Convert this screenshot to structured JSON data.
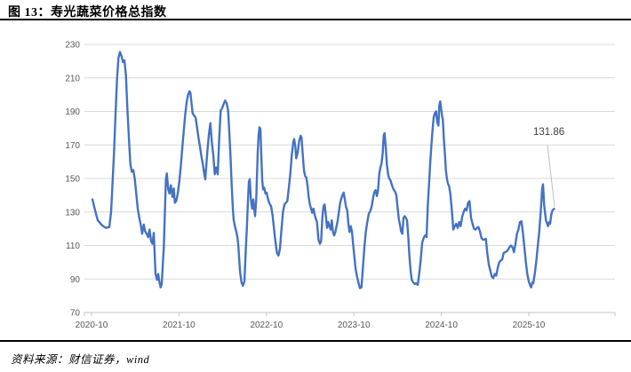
{
  "header": {
    "title": "图 13：寿光蔬菜价格总指数"
  },
  "footer": {
    "source": "资料来源：财信证券，wind"
  },
  "chart_data": {
    "type": "line",
    "title": "寿光蔬菜价格总指数",
    "series_name": "寿光蔬菜价格总指数",
    "xlabel": "",
    "ylabel": "",
    "x_unit": "months since 2020-10",
    "x_tick_labels": [
      "2020-10",
      "2021-10",
      "2022-10",
      "2023-10",
      "2024-10",
      "2025-10"
    ],
    "x_tick_months": [
      0,
      12,
      24,
      36,
      48,
      60
    ],
    "ylim": [
      70,
      230
    ],
    "y_ticks": [
      70,
      90,
      110,
      130,
      150,
      170,
      190,
      210,
      230
    ],
    "grid": true,
    "legend": "none",
    "last_value_label": "131.86",
    "last_point": {
      "m": 63.48,
      "v": 131.86
    },
    "colors": {
      "line": "#4472C4",
      "grid": "#D9D9D9",
      "axis": "#C6C6C6",
      "tick_label": "#595959",
      "annotation_text": "#404040",
      "leader": "#BFBFBF"
    },
    "points": [
      [
        0.12,
        137.5
      ],
      [
        0.49,
        131
      ],
      [
        0.85,
        125
      ],
      [
        1.46,
        122
      ],
      [
        1.95,
        120.5
      ],
      [
        2.44,
        121
      ],
      [
        2.68,
        130
      ],
      [
        2.89,
        148
      ],
      [
        3.09,
        165.5
      ],
      [
        3.29,
        188.5
      ],
      [
        3.5,
        209.5
      ],
      [
        3.7,
        222
      ],
      [
        3.9,
        225.5
      ],
      [
        4.11,
        223
      ],
      [
        4.3,
        219.5
      ],
      [
        4.51,
        220.5
      ],
      [
        4.72,
        211.5
      ],
      [
        4.91,
        192
      ],
      [
        5.12,
        174.5
      ],
      [
        5.33,
        158.5
      ],
      [
        5.52,
        154
      ],
      [
        5.73,
        155
      ],
      [
        5.94,
        149.5
      ],
      [
        6.13,
        141
      ],
      [
        6.34,
        132
      ],
      [
        6.55,
        126.5
      ],
      [
        6.74,
        122.5
      ],
      [
        6.95,
        117
      ],
      [
        7.16,
        122.5
      ],
      [
        7.35,
        118.5
      ],
      [
        7.56,
        117
      ],
      [
        7.77,
        115
      ],
      [
        7.96,
        119.5
      ],
      [
        8.17,
        112.5
      ],
      [
        8.38,
        111
      ],
      [
        8.54,
        117.5
      ],
      [
        8.78,
        93
      ],
      [
        8.99,
        89.5
      ],
      [
        9.15,
        93
      ],
      [
        9.3,
        88.5
      ],
      [
        9.48,
        85
      ],
      [
        9.63,
        87
      ],
      [
        9.79,
        100
      ],
      [
        9.91,
        109
      ],
      [
        10.21,
        149.5
      ],
      [
        10.33,
        153
      ],
      [
        10.52,
        143.5
      ],
      [
        10.7,
        141
      ],
      [
        10.89,
        146
      ],
      [
        11.1,
        139
      ],
      [
        11.29,
        144
      ],
      [
        11.43,
        135.5
      ],
      [
        11.62,
        136.5
      ],
      [
        11.83,
        141
      ],
      [
        12.04,
        148
      ],
      [
        12.23,
        156.5
      ],
      [
        12.44,
        167.5
      ],
      [
        12.65,
        178
      ],
      [
        12.84,
        187.5
      ],
      [
        13.05,
        195.5
      ],
      [
        13.26,
        200
      ],
      [
        13.45,
        202
      ],
      [
        13.57,
        201
      ],
      [
        13.74,
        194
      ],
      [
        13.87,
        189
      ],
      [
        14.06,
        187.5
      ],
      [
        14.27,
        186.5
      ],
      [
        14.48,
        180.5
      ],
      [
        14.67,
        174.5
      ],
      [
        14.88,
        169
      ],
      [
        15.09,
        163
      ],
      [
        15.28,
        158.5
      ],
      [
        15.45,
        153
      ],
      [
        15.61,
        149.5
      ],
      [
        15.89,
        166
      ],
      [
        16.1,
        176
      ],
      [
        16.3,
        183
      ],
      [
        16.5,
        172
      ],
      [
        16.71,
        164
      ],
      [
        16.91,
        152.5
      ],
      [
        17.11,
        156.5
      ],
      [
        17.32,
        152.5
      ],
      [
        17.52,
        174.5
      ],
      [
        17.72,
        190.5
      ],
      [
        17.93,
        192
      ],
      [
        18.13,
        194.5
      ],
      [
        18.33,
        196.5
      ],
      [
        18.54,
        195
      ],
      [
        18.74,
        190.5
      ],
      [
        18.94,
        174.5
      ],
      [
        19.06,
        164
      ],
      [
        19.23,
        146
      ],
      [
        19.39,
        132
      ],
      [
        19.51,
        125
      ],
      [
        19.67,
        121.5
      ],
      [
        19.88,
        118
      ],
      [
        20.04,
        114.5
      ],
      [
        20.16,
        109
      ],
      [
        20.37,
        95
      ],
      [
        20.57,
        88
      ],
      [
        20.77,
        86
      ],
      [
        20.98,
        88.5
      ],
      [
        21.18,
        109
      ],
      [
        21.3,
        119.5
      ],
      [
        21.46,
        136.5
      ],
      [
        21.59,
        148
      ],
      [
        21.71,
        149.5
      ],
      [
        21.87,
        137.5
      ],
      [
        22.04,
        132
      ],
      [
        22.2,
        137.5
      ],
      [
        22.32,
        132
      ],
      [
        22.44,
        127.5
      ],
      [
        22.6,
        137.5
      ],
      [
        22.8,
        165.5
      ],
      [
        22.93,
        176
      ],
      [
        23.05,
        180.5
      ],
      [
        23.17,
        179.5
      ],
      [
        23.29,
        164
      ],
      [
        23.41,
        149.5
      ],
      [
        23.54,
        143.5
      ],
      [
        23.7,
        144.5
      ],
      [
        23.87,
        141
      ],
      [
        24.02,
        141.5
      ],
      [
        24.15,
        139
      ],
      [
        24.3,
        136.5
      ],
      [
        24.48,
        134.5
      ],
      [
        24.63,
        133.5
      ],
      [
        24.84,
        128
      ],
      [
        25.04,
        120
      ],
      [
        25.24,
        112
      ],
      [
        25.45,
        105.5
      ],
      [
        25.65,
        104
      ],
      [
        25.85,
        108
      ],
      [
        26.06,
        119.5
      ],
      [
        26.26,
        129.5
      ],
      [
        26.46,
        134.5
      ],
      [
        26.67,
        135.5
      ],
      [
        26.87,
        136.5
      ],
      [
        27.07,
        144.5
      ],
      [
        27.28,
        153
      ],
      [
        27.48,
        164
      ],
      [
        27.68,
        171.5
      ],
      [
        27.8,
        173.5
      ],
      [
        27.96,
        169
      ],
      [
        28.09,
        162
      ],
      [
        28.29,
        165.5
      ],
      [
        28.5,
        172.5
      ],
      [
        28.7,
        175.5
      ],
      [
        28.82,
        174.5
      ],
      [
        28.99,
        164
      ],
      [
        29.15,
        155
      ],
      [
        29.3,
        151.5
      ],
      [
        29.48,
        150.5
      ],
      [
        29.63,
        146
      ],
      [
        29.79,
        139
      ],
      [
        29.96,
        134.5
      ],
      [
        30.12,
        132
      ],
      [
        30.28,
        129.5
      ],
      [
        30.45,
        132
      ],
      [
        30.61,
        128.5
      ],
      [
        30.77,
        126
      ],
      [
        30.94,
        124
      ],
      [
        31.13,
        113.5
      ],
      [
        31.34,
        111
      ],
      [
        31.5,
        112.5
      ],
      [
        31.67,
        126.5
      ],
      [
        31.83,
        133.5
      ],
      [
        31.99,
        134.5
      ],
      [
        32.16,
        127.5
      ],
      [
        32.32,
        120.5
      ],
      [
        32.48,
        124
      ],
      [
        32.65,
        121.5
      ],
      [
        32.8,
        119.5
      ],
      [
        32.96,
        125
      ],
      [
        33.13,
        118
      ],
      [
        33.29,
        116
      ],
      [
        33.45,
        118
      ],
      [
        33.62,
        121.5
      ],
      [
        33.78,
        125
      ],
      [
        33.94,
        130
      ],
      [
        34.11,
        135.5
      ],
      [
        34.27,
        138
      ],
      [
        34.43,
        140
      ],
      [
        34.6,
        141.5
      ],
      [
        34.76,
        137.5
      ],
      [
        34.91,
        133
      ],
      [
        35.09,
        131
      ],
      [
        35.24,
        123
      ],
      [
        35.4,
        118
      ],
      [
        35.57,
        121.5
      ],
      [
        35.73,
        118.5
      ],
      [
        35.89,
        111
      ],
      [
        36.06,
        103.5
      ],
      [
        36.22,
        96.5
      ],
      [
        36.43,
        91.5
      ],
      [
        36.62,
        88
      ],
      [
        36.83,
        84.5
      ],
      [
        37.04,
        85
      ],
      [
        37.23,
        96.5
      ],
      [
        37.44,
        109
      ],
      [
        37.65,
        118.5
      ],
      [
        37.84,
        124
      ],
      [
        38.05,
        129
      ],
      [
        38.26,
        130.5
      ],
      [
        38.45,
        133.5
      ],
      [
        38.66,
        139
      ],
      [
        38.82,
        142
      ],
      [
        38.99,
        143
      ],
      [
        39.15,
        139.5
      ],
      [
        39.3,
        142.5
      ],
      [
        39.48,
        152.5
      ],
      [
        39.63,
        156.5
      ],
      [
        39.79,
        159
      ],
      [
        39.96,
        165.5
      ],
      [
        40.09,
        175.5
      ],
      [
        40.21,
        177
      ],
      [
        40.37,
        169
      ],
      [
        40.52,
        158.5
      ],
      [
        40.7,
        152.5
      ],
      [
        40.85,
        150
      ],
      [
        41.01,
        149
      ],
      [
        41.18,
        146.5
      ],
      [
        41.34,
        144.5
      ],
      [
        41.5,
        143
      ],
      [
        41.67,
        142
      ],
      [
        41.83,
        140
      ],
      [
        41.99,
        133
      ],
      [
        42.16,
        126
      ],
      [
        42.32,
        122.5
      ],
      [
        42.48,
        118.5
      ],
      [
        42.65,
        117
      ],
      [
        42.8,
        126.5
      ],
      [
        42.96,
        127.5
      ],
      [
        43.13,
        126.5
      ],
      [
        43.29,
        125
      ],
      [
        43.45,
        116
      ],
      [
        43.62,
        103.5
      ],
      [
        43.78,
        95
      ],
      [
        43.94,
        89.5
      ],
      [
        44.15,
        88
      ],
      [
        44.35,
        87
      ],
      [
        44.55,
        87.5
      ],
      [
        44.76,
        86.5
      ],
      [
        44.96,
        93
      ],
      [
        45.16,
        101
      ],
      [
        45.37,
        111.5
      ],
      [
        45.57,
        114.5
      ],
      [
        45.77,
        116
      ],
      [
        45.98,
        115
      ],
      [
        46.13,
        133.5
      ],
      [
        46.3,
        146
      ],
      [
        46.46,
        158.5
      ],
      [
        46.62,
        169
      ],
      [
        46.79,
        179
      ],
      [
        46.95,
        186.5
      ],
      [
        47.11,
        189
      ],
      [
        47.28,
        190
      ],
      [
        47.44,
        183.5
      ],
      [
        47.6,
        181.5
      ],
      [
        47.72,
        193.5
      ],
      [
        47.84,
        196
      ],
      [
        47.96,
        192
      ],
      [
        48.09,
        187.5
      ],
      [
        48.21,
        185
      ],
      [
        48.33,
        174.5
      ],
      [
        48.5,
        164
      ],
      [
        48.62,
        155
      ],
      [
        48.74,
        150.5
      ],
      [
        48.9,
        147
      ],
      [
        49.06,
        145.5
      ],
      [
        49.23,
        141
      ],
      [
        49.39,
        133.5
      ],
      [
        49.55,
        125
      ],
      [
        49.63,
        119.5
      ],
      [
        49.84,
        121.5
      ],
      [
        50.04,
        123
      ],
      [
        50.24,
        120.5
      ],
      [
        50.45,
        124
      ],
      [
        50.65,
        121.5
      ],
      [
        50.85,
        127
      ],
      [
        51.06,
        130
      ],
      [
        51.26,
        132
      ],
      [
        51.46,
        131
      ],
      [
        51.67,
        135.5
      ],
      [
        51.87,
        136.5
      ],
      [
        52.07,
        126.5
      ],
      [
        52.28,
        123
      ],
      [
        52.48,
        120
      ],
      [
        52.68,
        119.5
      ],
      [
        52.89,
        120.5
      ],
      [
        53.09,
        121
      ],
      [
        53.29,
        118.5
      ],
      [
        53.5,
        114.5
      ],
      [
        53.7,
        113.5
      ],
      [
        53.9,
        113.5
      ],
      [
        54.11,
        114
      ],
      [
        54.3,
        105.5
      ],
      [
        54.51,
        98.5
      ],
      [
        54.72,
        95
      ],
      [
        54.91,
        91.5
      ],
      [
        55.12,
        90.5
      ],
      [
        55.33,
        93
      ],
      [
        55.52,
        92
      ],
      [
        55.73,
        96.5
      ],
      [
        55.94,
        100
      ],
      [
        56.13,
        101
      ],
      [
        56.34,
        101.5
      ],
      [
        56.55,
        105.5
      ],
      [
        56.74,
        106
      ],
      [
        56.95,
        106.5
      ],
      [
        57.16,
        107.5
      ],
      [
        57.35,
        109
      ],
      [
        57.56,
        110
      ],
      [
        57.77,
        109
      ],
      [
        57.96,
        106
      ],
      [
        58.17,
        111
      ],
      [
        58.38,
        117
      ],
      [
        58.57,
        119.5
      ],
      [
        58.78,
        124
      ],
      [
        58.99,
        124.5
      ],
      [
        59.18,
        118
      ],
      [
        59.39,
        109
      ],
      [
        59.6,
        100
      ],
      [
        59.79,
        93
      ],
      [
        60,
        88.5
      ],
      [
        60.21,
        86
      ],
      [
        60.33,
        85
      ],
      [
        60.49,
        88
      ],
      [
        60.61,
        87.5
      ],
      [
        60.82,
        93
      ],
      [
        61.01,
        100
      ],
      [
        61.22,
        109
      ],
      [
        61.43,
        118
      ],
      [
        61.62,
        129
      ],
      [
        61.83,
        143.5
      ],
      [
        61.95,
        146.5
      ],
      [
        62.11,
        134
      ],
      [
        62.35,
        125
      ],
      [
        62.65,
        121.5
      ],
      [
        62.8,
        124
      ],
      [
        62.93,
        123
      ],
      [
        63.08,
        128.5
      ],
      [
        63.26,
        131
      ],
      [
        63.48,
        131.86
      ]
    ]
  }
}
